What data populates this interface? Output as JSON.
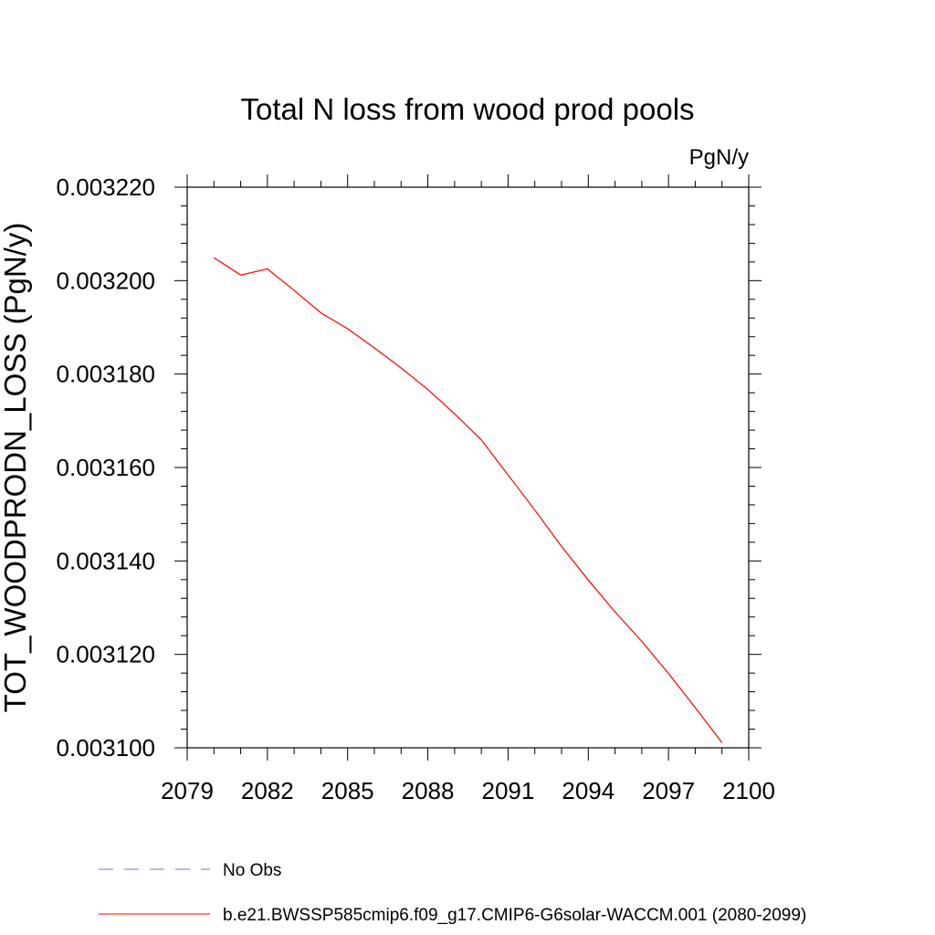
{
  "chart_data": {
    "type": "line",
    "title": "Total N loss from wood prod pools",
    "units_label": "PgN/y",
    "ylabel": "TOT_WOODPRODN_LOSS  (PgN/y)",
    "xlabel": "",
    "xlim": [
      2079,
      2100
    ],
    "ylim": [
      0.0031,
      0.00322
    ],
    "x_ticks": [
      2079,
      2082,
      2085,
      2088,
      2091,
      2094,
      2097,
      2100
    ],
    "x_tick_labels": [
      "2079",
      "2082",
      "2085",
      "2088",
      "2091",
      "2094",
      "2097",
      "2100"
    ],
    "y_ticks": [
      0.0031,
      0.00312,
      0.00314,
      0.00316,
      0.00318,
      0.0032,
      0.00322
    ],
    "y_tick_labels": [
      "0.003100",
      "0.003120",
      "0.003140",
      "0.003160",
      "0.003180",
      "0.003200",
      "0.003220"
    ],
    "grid": false,
    "series": [
      {
        "name": "b.e21.BWSSP585cmip6.f09_g17.CMIP6-G6solar-WACCM.001 (2080-2099)",
        "color": "#ff0000",
        "dash": "solid",
        "x": [
          2080,
          2081,
          2082,
          2083,
          2084,
          2085,
          2086,
          2087,
          2088,
          2089,
          2090,
          2091,
          2092,
          2093,
          2094,
          2095,
          2096,
          2097,
          2098,
          2099
        ],
        "y": [
          0.0032049,
          0.0032012,
          0.0032025,
          0.0031979,
          0.0031931,
          0.0031897,
          0.0031856,
          0.0031813,
          0.0031767,
          0.0031715,
          0.0031659,
          0.0031584,
          0.0031509,
          0.0031431,
          0.0031359,
          0.0031291,
          0.0031228,
          0.0031159,
          0.0031086,
          0.0031011
        ]
      }
    ],
    "legend": {
      "placement": "bottom",
      "entries": [
        {
          "label": "No Obs",
          "color": "#7777bb",
          "dash": "dashed"
        },
        {
          "label": "b.e21.BWSSP585cmip6.f09_g17.CMIP6-G6solar-WACCM.001 (2080-2099)",
          "color": "#ff0000",
          "dash": "solid"
        }
      ]
    }
  }
}
